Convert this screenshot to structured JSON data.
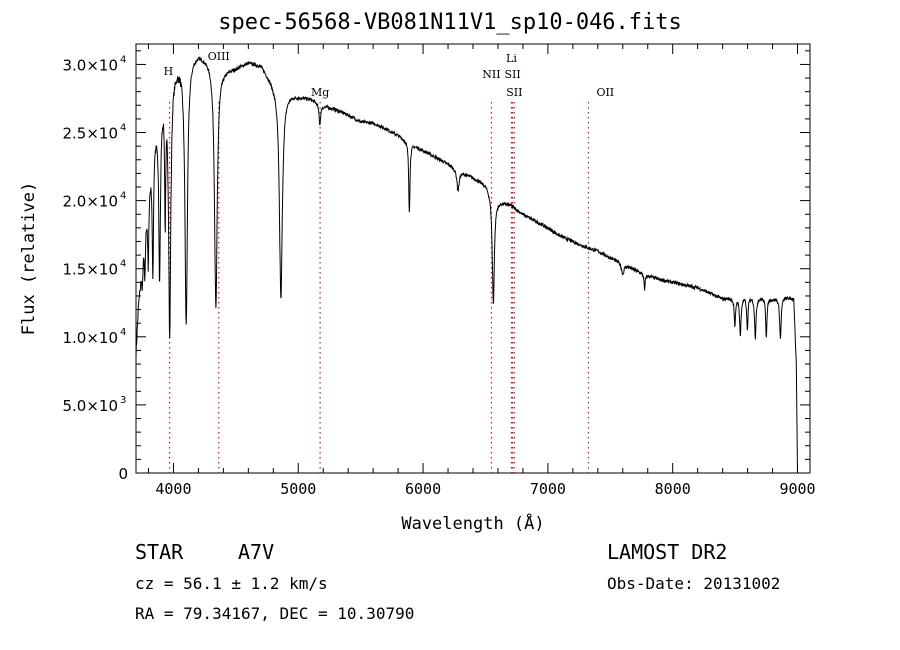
{
  "chart_data": {
    "type": "line",
    "title": "spec-56568-VB081N11V1_sp10-046.fits",
    "xlabel": "Wavelength (Å)",
    "ylabel": "Flux (relative)",
    "xlim": [
      3700,
      9100
    ],
    "ylim": [
      0,
      31500
    ],
    "x_ticks": [
      4000,
      5000,
      6000,
      7000,
      8000,
      9000
    ],
    "x_tick_labels": [
      "4000",
      "5000",
      "6000",
      "7000",
      "8000",
      "9000"
    ],
    "y_ticks": [
      0,
      5000,
      10000,
      15000,
      20000,
      25000,
      30000
    ],
    "y_tick_labels": [
      {
        "mantissa": "0",
        "exp": ""
      },
      {
        "mantissa": "5.0×10",
        "exp": "3"
      },
      {
        "mantissa": "1.0×10",
        "exp": "4"
      },
      {
        "mantissa": "1.5×10",
        "exp": "4"
      },
      {
        "mantissa": "2.0×10",
        "exp": "4"
      },
      {
        "mantissa": "2.5×10",
        "exp": "4"
      },
      {
        "mantissa": "3.0×10",
        "exp": "4"
      }
    ],
    "grid": false,
    "series": [
      {
        "color": "#000000",
        "continuum": [
          [
            3700,
            8800
          ],
          [
            3720,
            12500
          ],
          [
            3760,
            16500
          ],
          [
            3800,
            21000
          ],
          [
            3850,
            25000
          ],
          [
            3900,
            27500
          ],
          [
            3950,
            28900
          ],
          [
            4000,
            29800
          ],
          [
            4100,
            30600
          ],
          [
            4200,
            30900
          ],
          [
            4300,
            30400
          ],
          [
            4400,
            29700
          ],
          [
            4500,
            29800
          ],
          [
            4600,
            30200
          ],
          [
            4700,
            30000
          ],
          [
            4800,
            28700
          ],
          [
            4900,
            28000
          ],
          [
            5000,
            27700
          ],
          [
            5100,
            27500
          ],
          [
            5200,
            27000
          ],
          [
            5300,
            26700
          ],
          [
            5400,
            26300
          ],
          [
            5500,
            25800
          ],
          [
            5600,
            25700
          ],
          [
            5700,
            25300
          ],
          [
            5800,
            24800
          ],
          [
            5900,
            24200
          ],
          [
            6000,
            23700
          ],
          [
            6100,
            23200
          ],
          [
            6200,
            22700
          ],
          [
            6300,
            22100
          ],
          [
            6400,
            21700
          ],
          [
            6500,
            21200
          ],
          [
            6600,
            20000
          ],
          [
            6700,
            19700
          ],
          [
            6800,
            19000
          ],
          [
            6900,
            18500
          ],
          [
            7000,
            18000
          ],
          [
            7100,
            17400
          ],
          [
            7200,
            17000
          ],
          [
            7300,
            16600
          ],
          [
            7400,
            16300
          ],
          [
            7500,
            15800
          ],
          [
            7600,
            15400
          ],
          [
            7700,
            14900
          ],
          [
            7800,
            14500
          ],
          [
            7900,
            14200
          ],
          [
            8000,
            14000
          ],
          [
            8100,
            13800
          ],
          [
            8200,
            13600
          ],
          [
            8300,
            13200
          ],
          [
            8400,
            12800
          ],
          [
            8500,
            12900
          ],
          [
            8600,
            13000
          ],
          [
            8700,
            12900
          ],
          [
            8800,
            12800
          ],
          [
            8900,
            12900
          ],
          [
            8970,
            12800
          ],
          [
            8990,
            8000
          ],
          [
            9000,
            0
          ]
        ],
        "absorption_lines": [
          {
            "wavelength": 3750,
            "depth": 2000,
            "width": 4
          },
          {
            "wavelength": 3771,
            "depth": 3500,
            "width": 4
          },
          {
            "wavelength": 3798,
            "depth": 5500,
            "width": 5
          },
          {
            "wavelength": 3835,
            "depth": 9000,
            "width": 6
          },
          {
            "wavelength": 3889,
            "depth": 12500,
            "width": 8
          },
          {
            "wavelength": 3934,
            "depth": 9000,
            "width": 5
          },
          {
            "wavelength": 3970,
            "depth": 19000,
            "width": 10
          },
          {
            "wavelength": 4102,
            "depth": 19500,
            "width": 12
          },
          {
            "wavelength": 4340,
            "depth": 18000,
            "width": 13
          },
          {
            "wavelength": 4861,
            "depth": 15500,
            "width": 14
          },
          {
            "wavelength": 5173,
            "depth": 1500,
            "width": 8
          },
          {
            "wavelength": 5890,
            "depth": 5000,
            "width": 6
          },
          {
            "wavelength": 6280,
            "depth": 1500,
            "width": 10
          },
          {
            "wavelength": 6563,
            "depth": 8000,
            "width": 10
          },
          {
            "wavelength": 7600,
            "depth": 800,
            "width": 12
          },
          {
            "wavelength": 7775,
            "depth": 1200,
            "width": 5
          },
          {
            "wavelength": 8498,
            "depth": 2200,
            "width": 6
          },
          {
            "wavelength": 8542,
            "depth": 2800,
            "width": 7
          },
          {
            "wavelength": 8598,
            "depth": 2500,
            "width": 6
          },
          {
            "wavelength": 8662,
            "depth": 3000,
            "width": 7
          },
          {
            "wavelength": 8750,
            "depth": 2800,
            "width": 6
          },
          {
            "wavelength": 8863,
            "depth": 3000,
            "width": 7
          }
        ],
        "noise_amplitude": 250
      }
    ],
    "line_markers": [
      {
        "label": "H",
        "wavelength": 3969,
        "label_row": 0,
        "label_x": 3960
      },
      {
        "label": "OIII",
        "wavelength": 4363,
        "label_row": 1,
        "label_x": 4363
      },
      {
        "label": "Mg",
        "wavelength": 5175,
        "label_row": 2,
        "label_x": 5175
      },
      {
        "label": "NII",
        "wavelength": 6548,
        "label_row": 3,
        "label_x": 6548
      },
      {
        "label": "Li",
        "wavelength": 6708,
        "label_row": 4,
        "label_x": 6708
      },
      {
        "label": "SII",
        "wavelength": 6717,
        "label_row": 3,
        "label_x": 6717
      },
      {
        "label": "SII",
        "wavelength": 6731,
        "label_row": 2,
        "label_x": 6731
      },
      {
        "label": "OII",
        "wavelength": 7325,
        "label_row": 2,
        "label_x": 7460
      }
    ],
    "marker_color": "#d01818"
  },
  "info": {
    "star_label": "STAR",
    "spectral_type": "A7V",
    "survey": "LAMOST DR2",
    "cz": "cz = 56.1 ± 1.2 km/s",
    "obs_date": "Obs-Date: 20131002",
    "coords": "RA =  79.34167, DEC =  10.30790"
  }
}
